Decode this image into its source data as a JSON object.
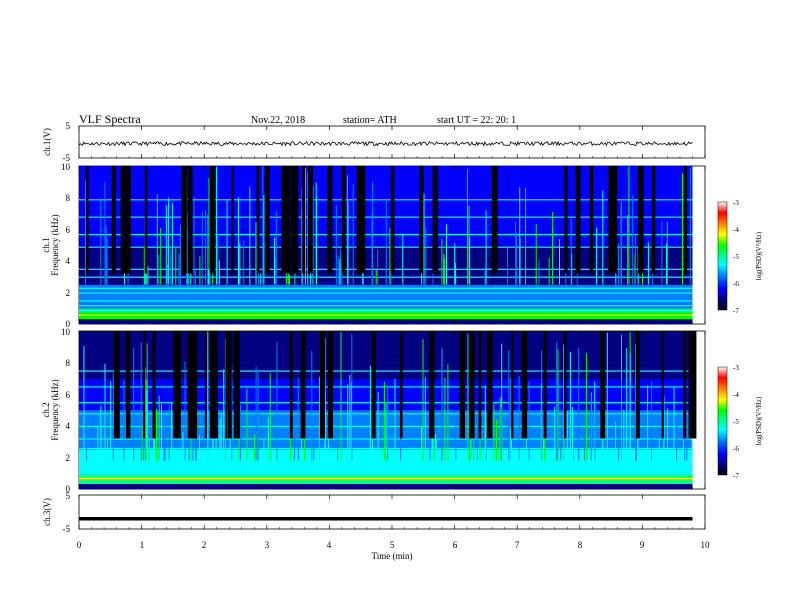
{
  "header": {
    "title": "VLF  Spectra",
    "date": "Nov.22, 2018",
    "station": "station= ATH",
    "start": "start  UT  =    22: 20: 1"
  },
  "chart_data": [
    {
      "type": "line",
      "panel": "ch1-waveform",
      "ylabel": "ch.1(V)",
      "ylim": [
        -5,
        5
      ],
      "yticks": [
        "5",
        "-5"
      ],
      "xlim": [
        0,
        10
      ],
      "mean": -0.5,
      "amplitude": 0.6,
      "color": "#000000"
    },
    {
      "type": "heatmap",
      "panel": "ch1-spectrogram",
      "ylabel": "ch.1\nFrequency  (kHz)",
      "ylim": [
        0,
        10
      ],
      "yticks": [
        "0",
        "2",
        "4",
        "6",
        "8",
        "10"
      ],
      "xlim": [
        0,
        9.8
      ],
      "colorbar": {
        "label": "log(PSD)(V²/Hz)",
        "range": [
          -7,
          -3
        ],
        "ticks": [
          "-3",
          "-4",
          "-5",
          "-6",
          "-7"
        ]
      }
    },
    {
      "type": "heatmap",
      "panel": "ch2-spectrogram",
      "ylabel": "ch.2\nFrequency  (kHz)",
      "ylim": [
        0,
        10
      ],
      "yticks": [
        "0",
        "2",
        "4",
        "6",
        "8",
        "10"
      ],
      "xlim": [
        0,
        9.8
      ],
      "colorbar": {
        "label": "log(PSD)(V²/Hz)",
        "range": [
          -7,
          -3
        ],
        "ticks": [
          "-3",
          "-4",
          "-5",
          "-6",
          "-7"
        ]
      }
    },
    {
      "type": "line",
      "panel": "ch3-waveform",
      "ylabel": "ch.3(V)",
      "ylim": [
        -5,
        5
      ],
      "yticks": [
        "5",
        "-5"
      ],
      "xlim": [
        0,
        10
      ],
      "mean": -2,
      "amplitude": 0,
      "color": "#000000"
    }
  ],
  "xaxis": {
    "label": "Time  (min)",
    "ticks": [
      "0",
      "1",
      "2",
      "3",
      "4",
      "5",
      "6",
      "7",
      "8",
      "9",
      "10"
    ],
    "range": [
      0,
      10
    ]
  },
  "colormap": [
    "#000000",
    "#000080",
    "#0000ff",
    "#0080ff",
    "#00ffff",
    "#00ff80",
    "#00ff00",
    "#ffff00",
    "#ff8000",
    "#ff0000",
    "#ffffff"
  ]
}
